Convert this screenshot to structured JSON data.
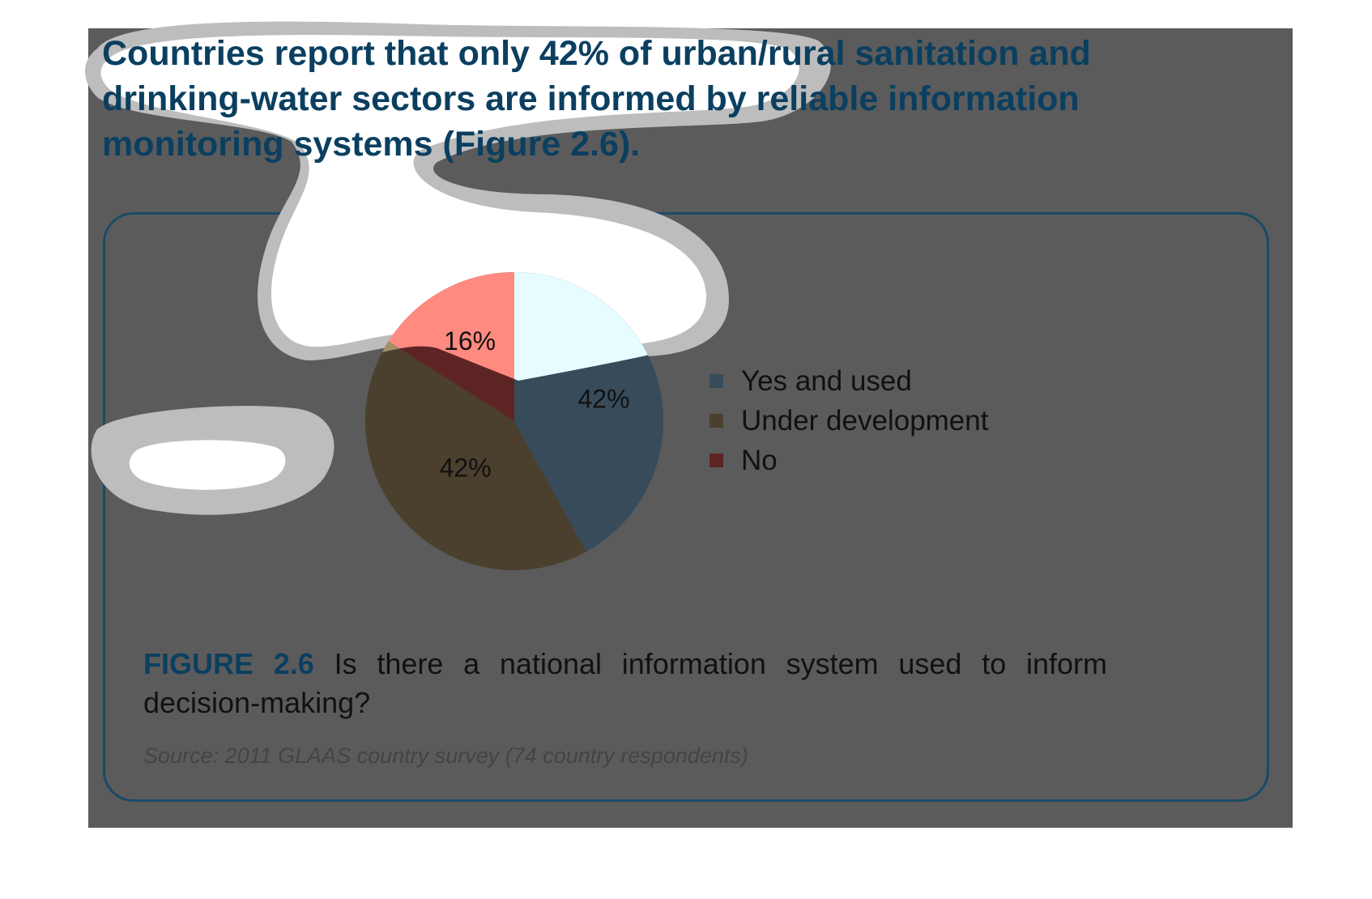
{
  "headline": "Countries report that only 42% of urban/rural sanitation and drinking-water sectors are informed by reliable information monitoring systems (Figure 2.6).",
  "caption": {
    "label": "FIGURE 2.6",
    "text": " Is there a national information system used to inform decision-making?"
  },
  "source": "Source: 2011 GLAAS country survey (74 country respondents)",
  "colors": {
    "yes_and_used": "#374b5a",
    "under_development": "#4b3f2e",
    "no": "#5e2424",
    "no_highlight": "#ff8a80",
    "yes_highlight": "#e5fdff",
    "panel": "#5b5b5b",
    "headline": "#0b3f60"
  },
  "chart_data": {
    "type": "pie",
    "title": "",
    "categories": [
      "Yes and used",
      "Under development",
      "No"
    ],
    "values": [
      42,
      42,
      16
    ],
    "data_labels": [
      "42%",
      "42%",
      "16%"
    ],
    "start_angle_deg": 0,
    "direction": "clockwise",
    "legend_position": "right"
  }
}
